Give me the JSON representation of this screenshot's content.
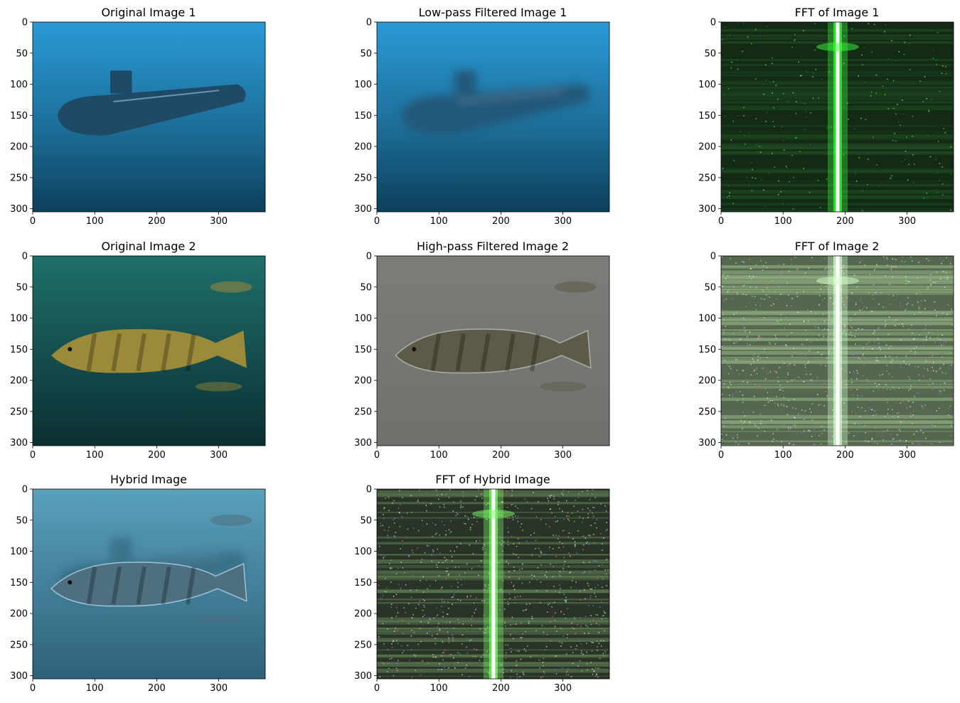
{
  "chart_data": [
    {
      "type": "heatmap",
      "title": "Original Image 1",
      "content": "underwater submarine photo",
      "xlim": [
        0,
        375
      ],
      "ylim": [
        305,
        0
      ],
      "xticks": [
        0,
        100,
        200,
        300
      ],
      "yticks": [
        0,
        50,
        100,
        150,
        200,
        250,
        300
      ],
      "colors": {
        "top": "#2a9ad6",
        "mid": "#1c6f9a",
        "bottom": "#0d3f5c",
        "object": "#1e4a66"
      }
    },
    {
      "type": "heatmap",
      "title": "Low-pass Filtered Image 1",
      "content": "blurred submarine",
      "xlim": [
        0,
        375
      ],
      "ylim": [
        305,
        0
      ],
      "xticks": [
        0,
        100,
        200,
        300
      ],
      "yticks": [
        0,
        50,
        100,
        150,
        200,
        250,
        300
      ],
      "colors": {
        "top": "#2a9ad6",
        "mid": "#1d6e98",
        "bottom": "#0d3f5c",
        "object": "#24587a"
      }
    },
    {
      "type": "heatmap",
      "title": "FFT of Image 1",
      "content": "frequency spectrum, green",
      "xlim": [
        0,
        375
      ],
      "ylim": [
        305,
        0
      ],
      "xticks": [
        0,
        100,
        200,
        300
      ],
      "yticks": [
        0,
        50,
        100,
        150,
        200,
        250,
        300
      ],
      "colors": {
        "background": "#132a15",
        "band": "#1f4a22",
        "center": "#ffffff",
        "glow": "#3cff3c"
      }
    },
    {
      "type": "heatmap",
      "title": "Original Image 2",
      "content": "cod fish underwater photo",
      "xlim": [
        0,
        375
      ],
      "ylim": [
        305,
        0
      ],
      "xticks": [
        0,
        100,
        200,
        300
      ],
      "yticks": [
        0,
        50,
        100,
        150,
        200,
        250,
        300
      ],
      "colors": {
        "top": "#1f6f6a",
        "bottom": "#0b2f33",
        "object": "#9a8a3a"
      }
    },
    {
      "type": "heatmap",
      "title": "High-pass Filtered Image 2",
      "content": "edge-enhanced fish",
      "xlim": [
        0,
        375
      ],
      "ylim": [
        305,
        0
      ],
      "xticks": [
        0,
        100,
        200,
        300
      ],
      "yticks": [
        0,
        50,
        100,
        150,
        200,
        250,
        300
      ],
      "colors": {
        "top": "#7b7d78",
        "bottom": "#6f716d",
        "object": "#5e5a48"
      }
    },
    {
      "type": "heatmap",
      "title": "FFT of Image 2",
      "content": "frequency spectrum, noisy",
      "xlim": [
        0,
        375
      ],
      "ylim": [
        305,
        0
      ],
      "xticks": [
        0,
        100,
        200,
        300
      ],
      "yticks": [
        0,
        50,
        100,
        150,
        200,
        250,
        300
      ],
      "colors": {
        "background": "#55684f",
        "band": "#8fae80",
        "center": "#ffffff",
        "glow": "#d8ffd0"
      }
    },
    {
      "type": "heatmap",
      "title": "Hybrid Image",
      "content": "fish overlaid on submarine blur",
      "xlim": [
        0,
        375
      ],
      "ylim": [
        305,
        0
      ],
      "xticks": [
        0,
        100,
        200,
        300
      ],
      "yticks": [
        0,
        50,
        100,
        150,
        200,
        250,
        300
      ],
      "colors": {
        "top": "#5aa0bc",
        "bottom": "#2e6179",
        "object": "#4d6f80"
      }
    },
    {
      "type": "heatmap",
      "title": "FFT of Hybrid Image",
      "content": "frequency spectrum, mixed",
      "xlim": [
        0,
        375
      ],
      "ylim": [
        305,
        0
      ],
      "xticks": [
        0,
        100,
        200,
        300
      ],
      "yticks": [
        0,
        50,
        100,
        150,
        200,
        250,
        300
      ],
      "colors": {
        "background": "#2a3327",
        "band": "#5c7a52",
        "center": "#ffffff",
        "glow": "#7dff6a"
      }
    }
  ]
}
